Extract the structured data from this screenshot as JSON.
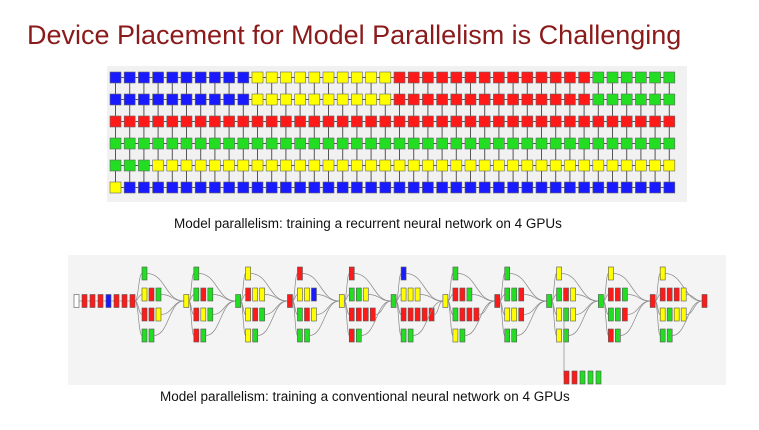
{
  "title": "Device Placement for Model Parallelism is Challenging",
  "captions": {
    "rnn": "Model parallelism: training a recurrent neural network on 4 GPUs",
    "cnn": "Model parallelism: training a conventional neural network on 4 GPUs"
  },
  "colors": {
    "title": "#8b1a1a",
    "gpu_blue": "#1a1aff",
    "gpu_yellow": "#ffff00",
    "gpu_red": "#ff1a1a",
    "gpu_green": "#22dd22",
    "edge": "#888888",
    "panel_bg": "#f1f1f1"
  },
  "devices": [
    "B",
    "Y",
    "R",
    "G"
  ],
  "rnn_grid": {
    "rows": [
      "BBBBBBBBBBYYYYYYYYYYRRRRRRRRRRRRRRGGGGGG",
      "BBBBBBBBBBYYYYYYYYYYRRRRRRRRRRRRRRGGGGGG",
      "RRRRRRRRRRRRRRRRRRRRRRRRRRRRRRRRRRRRRRRR",
      "GGGGGGGGGGGGGGGGGGGGGGGGGGGGGGGGGGGGGGGG",
      "GGGYYYYYYYYYYYYYYYYYYYYYYYYYYYYYYYYYYYYY",
      "YBBBBBBBBBBBBBBBBBBBBBBBBBBBBBBBBBBBBBBB"
    ]
  },
  "cnn_graph": {
    "stem": "WRRRBRRR",
    "modules": [
      {
        "top": "G",
        "mid": "YRG",
        "low": "RRY",
        "bot": "GG",
        "branch": "RRRR"
      },
      {
        "top": "G",
        "mid": "GRG",
        "low": "RYG",
        "bot": "RG",
        "branch": "YYYY"
      },
      {
        "top": "Y",
        "mid": "RYY",
        "low": "YRG",
        "bot": "YG",
        "branch": "GGGG"
      },
      {
        "top": "R",
        "mid": "YYB",
        "low": "GRY",
        "bot": "GG",
        "branch": "RRRR"
      },
      {
        "top": "R",
        "mid": "GGY",
        "low": "RRRR",
        "bot": "RG",
        "branch": "YYYY"
      },
      {
        "top": "B",
        "mid": "YYY",
        "low": "RRRRR",
        "bot": "GG",
        "branch": "GGGG"
      },
      {
        "top": "G",
        "mid": "RRG",
        "low": "GRRR",
        "bot": "YG",
        "branch": "RRRR"
      },
      {
        "top": "G",
        "mid": "GGR",
        "low": "YYR",
        "bot": "GG",
        "branch": "YYYY"
      },
      {
        "top": "Y",
        "mid": "GRY",
        "low": "YGY",
        "bot": "YG",
        "branch": "GGGG"
      },
      {
        "top": "Y",
        "mid": "RRG",
        "low": "GGR",
        "bot": "RG",
        "branch": "RRRR"
      },
      {
        "top": "Y",
        "mid": "RRRY",
        "low": "YGYY",
        "bot": "GG",
        "branch": "YYYY"
      }
    ],
    "aux_head": "RRGGG"
  }
}
